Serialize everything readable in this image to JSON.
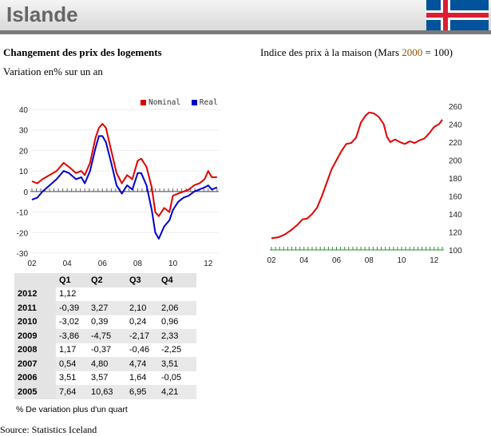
{
  "header": {
    "country": "Islande",
    "flag": "iceland-flag"
  },
  "left": {
    "title": "Changement des prix des logements",
    "subtitle": "Variation en% sur un an",
    "legend": [
      {
        "label": "Nominal",
        "color": "#e00000"
      },
      {
        "label": "Real",
        "color": "#0000cc"
      }
    ]
  },
  "right": {
    "title_prefix": "Indice des prix à la maison (Mars ",
    "title_year": "2000",
    "title_suffix": " = 100)"
  },
  "table": {
    "headers": [
      "",
      "Q1",
      "Q2",
      "Q3",
      "Q4"
    ],
    "rows": [
      [
        "2012",
        "1,12",
        "",
        "",
        ""
      ],
      [
        "2011",
        "-0,39",
        "3,27",
        "2,10",
        "2,06"
      ],
      [
        "2010",
        "-3,02",
        "0,39",
        "0,24",
        "0,96"
      ],
      [
        "2009",
        "-3,86",
        "-4,75",
        "-2,17",
        "2,33"
      ],
      [
        "2008",
        "1,17",
        "-0,37",
        "-0,46",
        "-2,25"
      ],
      [
        "2007",
        "0,54",
        "4,80",
        "4,74",
        "3,51"
      ],
      [
        "2006",
        "3,51",
        "3,57",
        "1,64",
        "-0,05"
      ],
      [
        "2005",
        "7,64",
        "10,63",
        "6,95",
        "4,21"
      ]
    ]
  },
  "note": "% De variation plus d'un quart",
  "source": "Source: Statistics Iceland",
  "chart_data": [
    {
      "type": "line",
      "x_ticks": [
        "02",
        "04",
        "06",
        "08",
        "10",
        "12"
      ],
      "y_ticks": [
        40,
        30,
        20,
        10,
        0,
        -10,
        -20,
        -30
      ],
      "ylim": [
        -30,
        40
      ],
      "xlim": [
        2002.0,
        2012.6
      ],
      "series": [
        {
          "name": "Nominal",
          "color": "#e00000",
          "x": [
            2002.0,
            2002.3,
            2002.6,
            2003.0,
            2003.4,
            2003.8,
            2004.1,
            2004.5,
            2004.8,
            2005.0,
            2005.3,
            2005.6,
            2005.8,
            2006.0,
            2006.2,
            2006.5,
            2006.8,
            2007.1,
            2007.4,
            2007.7,
            2008.0,
            2008.2,
            2008.5,
            2008.8,
            2009.0,
            2009.2,
            2009.5,
            2009.8,
            2010.0,
            2010.3,
            2010.6,
            2010.9,
            2011.2,
            2011.5,
            2011.8,
            2012.0,
            2012.2,
            2012.5
          ],
          "y": [
            5,
            4,
            6,
            8,
            10,
            14,
            12,
            9,
            10,
            8,
            14,
            26,
            31,
            33,
            31,
            20,
            9,
            4,
            8,
            6,
            15,
            16,
            12,
            2,
            -10,
            -12,
            -8,
            -10,
            -2,
            -1,
            0,
            1,
            3,
            4,
            6,
            10,
            7,
            7
          ]
        },
        {
          "name": "Real",
          "color": "#0000cc",
          "x": [
            2002.0,
            2002.3,
            2002.6,
            2003.0,
            2003.4,
            2003.8,
            2004.1,
            2004.5,
            2004.8,
            2005.0,
            2005.3,
            2005.6,
            2005.8,
            2006.0,
            2006.2,
            2006.5,
            2006.8,
            2007.1,
            2007.4,
            2007.7,
            2008.0,
            2008.2,
            2008.5,
            2008.8,
            2009.0,
            2009.2,
            2009.5,
            2009.8,
            2010.0,
            2010.3,
            2010.6,
            2010.9,
            2011.2,
            2011.5,
            2011.8,
            2012.0,
            2012.2,
            2012.5
          ],
          "y": [
            -4,
            -3,
            0,
            3,
            6,
            10,
            9,
            6,
            7,
            4,
            10,
            21,
            27,
            27,
            24,
            14,
            3,
            -1,
            3,
            1,
            9,
            9,
            3,
            -9,
            -20,
            -23,
            -17,
            -14,
            -9,
            -5,
            -3,
            -2,
            0,
            1,
            2,
            3,
            1,
            2
          ]
        }
      ]
    },
    {
      "type": "line",
      "x_ticks": [
        "02",
        "04",
        "06",
        "08",
        "10",
        "12"
      ],
      "y_ticks": [
        260,
        240,
        220,
        200,
        180,
        160,
        140,
        120,
        100
      ],
      "ylim": [
        100,
        260
      ],
      "xlim": [
        2002.0,
        2012.6
      ],
      "series": [
        {
          "color": "#e00000",
          "x": [
            2002.0,
            2002.4,
            2002.8,
            2003.2,
            2003.6,
            2003.9,
            2004.2,
            2004.5,
            2004.8,
            2005.1,
            2005.4,
            2005.7,
            2006.0,
            2006.3,
            2006.6,
            2006.9,
            2007.2,
            2007.5,
            2007.8,
            2008.0,
            2008.3,
            2008.6,
            2008.9,
            2009.1,
            2009.3,
            2009.6,
            2009.9,
            2010.2,
            2010.5,
            2010.8,
            2011.1,
            2011.4,
            2011.7,
            2012.0,
            2012.3,
            2012.5
          ],
          "y": [
            113,
            114,
            117,
            122,
            128,
            134,
            135,
            140,
            147,
            160,
            175,
            190,
            200,
            210,
            218,
            219,
            225,
            242,
            250,
            253,
            252,
            248,
            240,
            226,
            220,
            223,
            220,
            218,
            221,
            219,
            222,
            224,
            230,
            237,
            240,
            245
          ]
        }
      ]
    }
  ]
}
